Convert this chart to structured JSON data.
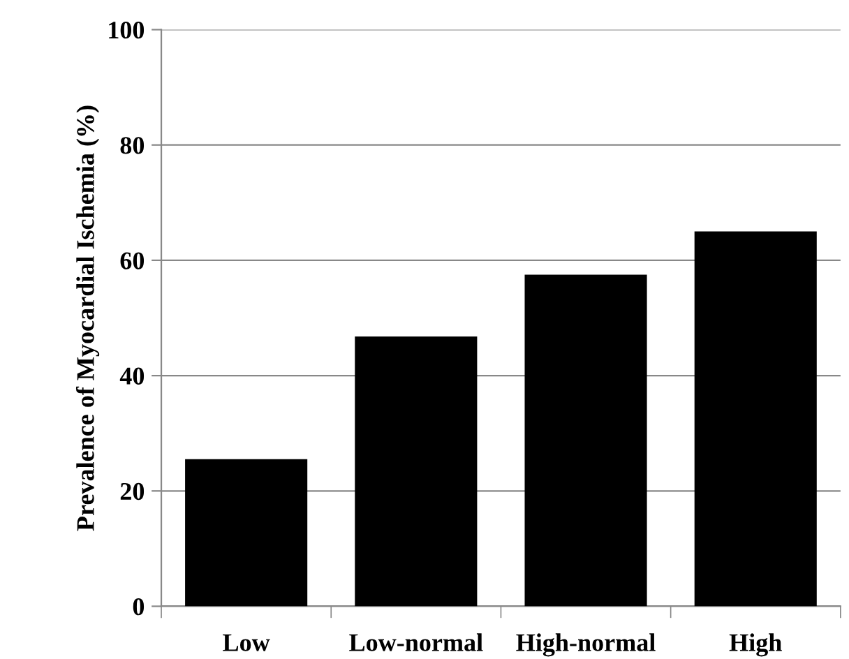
{
  "chart_data": {
    "type": "bar",
    "ylabel": "Prevalence of Myocardial Ischemia (%)",
    "categories": [
      "Low",
      "Low-normal",
      "High-normal",
      "High"
    ],
    "values": [
      25.5,
      46.8,
      57.5,
      65
    ],
    "color": "#000000",
    "ylim": [
      0,
      100
    ],
    "yticks": [
      0,
      20,
      40,
      60,
      80,
      100
    ],
    "grid": "y",
    "legend": false
  }
}
